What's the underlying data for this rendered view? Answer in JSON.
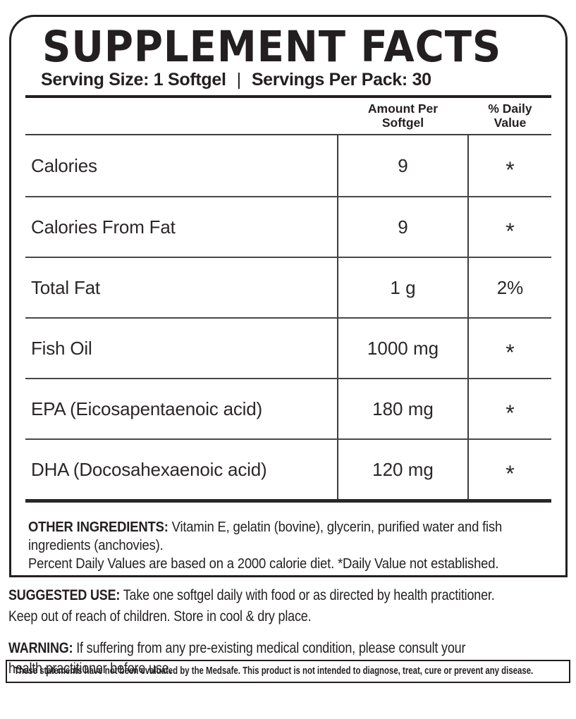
{
  "panel": {
    "title": "SUPPLEMENT FACTS",
    "serving_size": "Serving Size: 1 Softgel",
    "divider": "|",
    "servings_per_pack": "Servings Per Pack: 30",
    "table": {
      "col_amount_line1": "Amount Per",
      "col_amount_line2": "Softgel",
      "col_dv_line1": "% Daily",
      "col_dv_line2": "Value",
      "rows": [
        {
          "name": "Calories",
          "amount": "9",
          "dv": "*"
        },
        {
          "name": "Calories From Fat",
          "amount": "9",
          "dv": "*"
        },
        {
          "name": "Total Fat",
          "amount": "1 g",
          "dv": "2%"
        },
        {
          "name": "Fish Oil",
          "amount": "1000 mg",
          "dv": "*"
        },
        {
          "name": "EPA (Eicosapentaenoic acid)",
          "amount": "180 mg",
          "dv": "*"
        },
        {
          "name": "DHA (Docosahexaenoic acid)",
          "amount": "120 mg",
          "dv": "*"
        }
      ]
    },
    "other_ingredients": {
      "label": "OTHER INGREDIENTS:",
      "line1": "Vitamin E, gelatin (bovine), glycerin, purified water and fish",
      "line2": "ingredients (anchovies).",
      "note": "Percent Daily Values are based on a 2000 calorie diet. *Daily Value not established."
    }
  },
  "below": {
    "suggested_use": {
      "label": "SUGGESTED USE:",
      "line1": "Take one softgel daily with food or as directed by health practitioner.",
      "line2": "Keep out of reach of children. Store in cool & dry place."
    },
    "warning": {
      "label": "WARNING:",
      "line1": "If suffering from any pre-existing medical condition, please consult your",
      "line2": "health practitioner before use."
    },
    "disclaimer": "These statements have not been evaluated by the Medsafe. This product is not intended to diagnose, treat, cure or prevent any disease."
  },
  "colors": {
    "ink": "#231f20",
    "background": "#ffffff"
  }
}
